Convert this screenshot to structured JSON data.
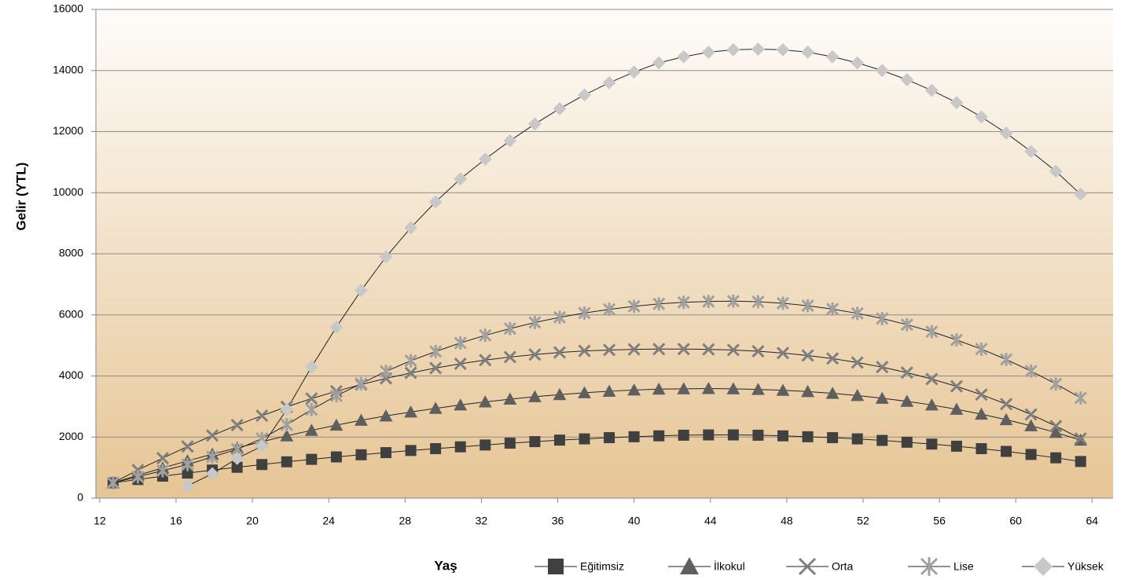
{
  "chart_data": {
    "type": "line",
    "x_label": "Yaş",
    "y_label": "Gelir (YTL)",
    "x": [
      12.7,
      14.0,
      15.3,
      16.6,
      17.9,
      19.2,
      20.5,
      21.8,
      23.1,
      24.4,
      25.7,
      27.0,
      28.3,
      29.6,
      30.9,
      32.2,
      33.5,
      34.8,
      36.1,
      37.4,
      38.7,
      40.0,
      41.3,
      42.6,
      43.9,
      45.2,
      46.5,
      47.8,
      49.1,
      50.4,
      51.7,
      53.0,
      54.3,
      55.6,
      56.9,
      58.2,
      59.5,
      60.8,
      62.1,
      63.4
    ],
    "series": [
      {
        "name": "Eğitimsiz",
        "color": "#404040",
        "marker": "square",
        "values": [
          500,
          610,
          720,
          820,
          920,
          1010,
          1100,
          1190,
          1270,
          1350,
          1420,
          1490,
          1560,
          1620,
          1680,
          1740,
          1800,
          1850,
          1900,
          1940,
          1980,
          2010,
          2040,
          2060,
          2070,
          2070,
          2060,
          2040,
          2010,
          1980,
          1940,
          1890,
          1830,
          1770,
          1700,
          1620,
          1530,
          1430,
          1320,
          1200
        ]
      },
      {
        "name": "İlkokul",
        "color": "#5f5f5f",
        "marker": "triangle",
        "values": [
          500,
          750,
          990,
          1220,
          1440,
          1650,
          1850,
          2040,
          2220,
          2390,
          2550,
          2690,
          2820,
          2940,
          3050,
          3150,
          3240,
          3320,
          3390,
          3450,
          3500,
          3540,
          3570,
          3580,
          3590,
          3580,
          3560,
          3530,
          3490,
          3430,
          3360,
          3270,
          3170,
          3050,
          2910,
          2750,
          2570,
          2370,
          2150,
          1900
        ]
      },
      {
        "name": "Orta",
        "color": "#7f7f7f",
        "marker": "cross",
        "values": [
          500,
          920,
          1310,
          1690,
          2050,
          2390,
          2700,
          2990,
          3260,
          3500,
          3720,
          3920,
          4100,
          4260,
          4400,
          4520,
          4620,
          4700,
          4770,
          4820,
          4850,
          4870,
          4880,
          4880,
          4870,
          4850,
          4810,
          4750,
          4670,
          4570,
          4440,
          4290,
          4110,
          3900,
          3660,
          3390,
          3080,
          2740,
          2360,
          1950
        ]
      },
      {
        "name": "Lise",
        "color": "#a0a0a0",
        "marker": "asterisk",
        "values": [
          500,
          700,
          900,
          1100,
          1350,
          1600,
          1950,
          2400,
          2900,
          3350,
          3750,
          4150,
          4500,
          4800,
          5080,
          5330,
          5550,
          5750,
          5920,
          6060,
          6180,
          6280,
          6360,
          6410,
          6440,
          6450,
          6430,
          6380,
          6300,
          6190,
          6050,
          5880,
          5680,
          5450,
          5180,
          4880,
          4540,
          4160,
          3740,
          3280
        ]
      },
      {
        "name": "Yüksek",
        "color": "#c8c8c8",
        "marker": "diamond",
        "values": [
          null,
          null,
          null,
          400,
          800,
          1300,
          1700,
          2900,
          4300,
          5600,
          6800,
          7900,
          8850,
          9700,
          10450,
          11100,
          11700,
          12250,
          12750,
          13200,
          13600,
          13950,
          14250,
          14450,
          14600,
          14680,
          14700,
          14680,
          14600,
          14450,
          14250,
          14000,
          13700,
          13350,
          12950,
          12480,
          11950,
          11350,
          10700,
          9950
        ]
      }
    ],
    "xlim": [
      11.8,
      65.1
    ],
    "xticks": [
      12,
      16,
      20,
      24,
      28,
      32,
      36,
      40,
      44,
      48,
      52,
      56,
      60,
      64
    ],
    "ylim": [
      0,
      16000
    ],
    "yticks": [
      0,
      2000,
      4000,
      6000,
      8000,
      10000,
      12000,
      14000,
      16000
    ],
    "grid": true,
    "legend": "bottom"
  }
}
